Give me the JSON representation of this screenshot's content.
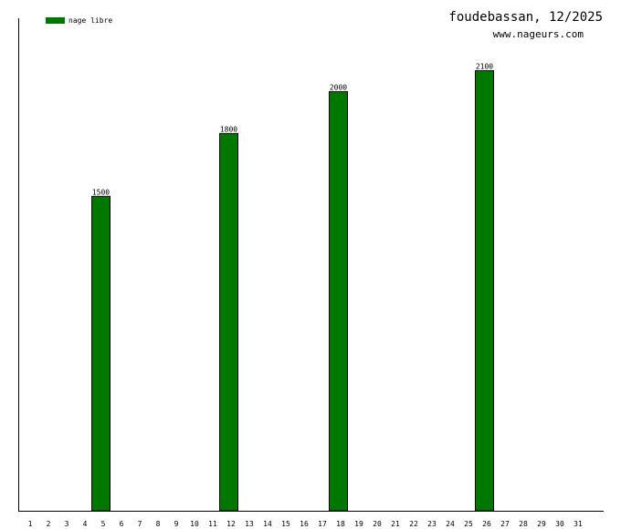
{
  "chart_data": {
    "type": "bar",
    "title": "foudebassan, 12/2025",
    "subtitle": "www.nageurs.com",
    "legend": {
      "position": "top-left",
      "entries": [
        {
          "name": "nage libre",
          "color": "#007800"
        }
      ]
    },
    "categories": [
      "1",
      "2",
      "3",
      "4",
      "5",
      "6",
      "7",
      "8",
      "9",
      "10",
      "11",
      "12",
      "13",
      "14",
      "15",
      "16",
      "17",
      "18",
      "19",
      "20",
      "21",
      "22",
      "23",
      "24",
      "25",
      "26",
      "27",
      "28",
      "29",
      "30",
      "31"
    ],
    "series": [
      {
        "name": "nage libre",
        "color": "#007800",
        "values": [
          0,
          0,
          0,
          0,
          1500,
          0,
          0,
          0,
          0,
          0,
          0,
          1800,
          0,
          0,
          0,
          0,
          0,
          2000,
          0,
          0,
          0,
          0,
          0,
          0,
          0,
          2100,
          0,
          0,
          0,
          0,
          0
        ]
      }
    ],
    "ylim": [
      0,
      2350
    ],
    "grid": false,
    "xlabel": "",
    "ylabel": ""
  }
}
